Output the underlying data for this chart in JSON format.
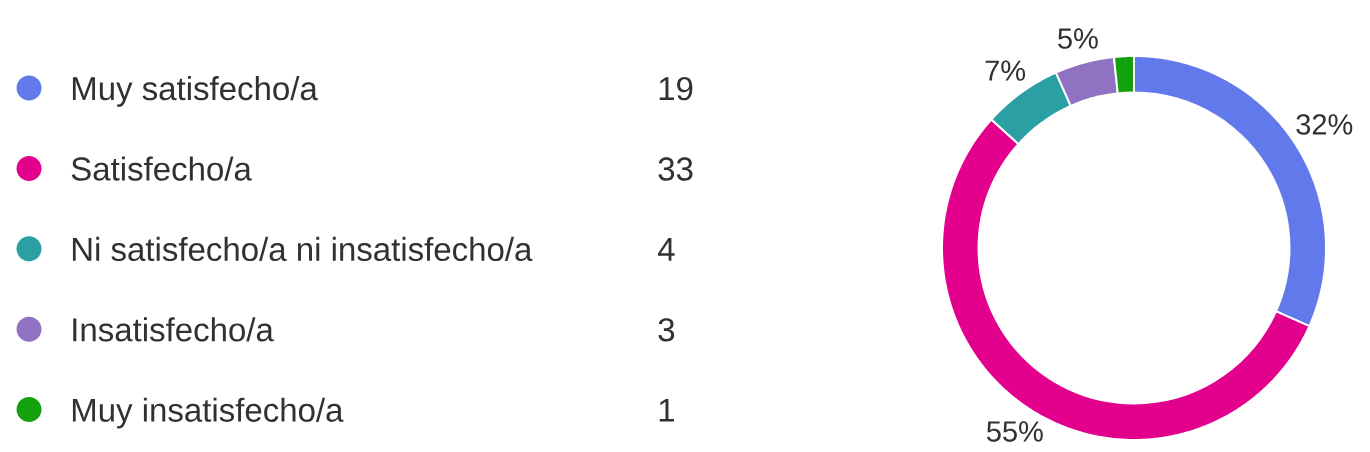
{
  "chart_data": {
    "type": "donut",
    "categories": [
      "Muy satisfecho/a",
      "Satisfecho/a",
      "Ni satisfecho/a ni insatisfecho/a",
      "Insatisfecho/a",
      "Muy insatisfecho/a"
    ],
    "values": [
      19,
      33,
      4,
      3,
      1
    ],
    "colors": [
      "#6279eb",
      "#e3008c",
      "#2aa0a4",
      "#8f72c1",
      "#13a10e"
    ],
    "annotations": [
      "32%",
      "55%",
      "7%",
      "5%"
    ],
    "data_labels": true,
    "legend": "left"
  }
}
